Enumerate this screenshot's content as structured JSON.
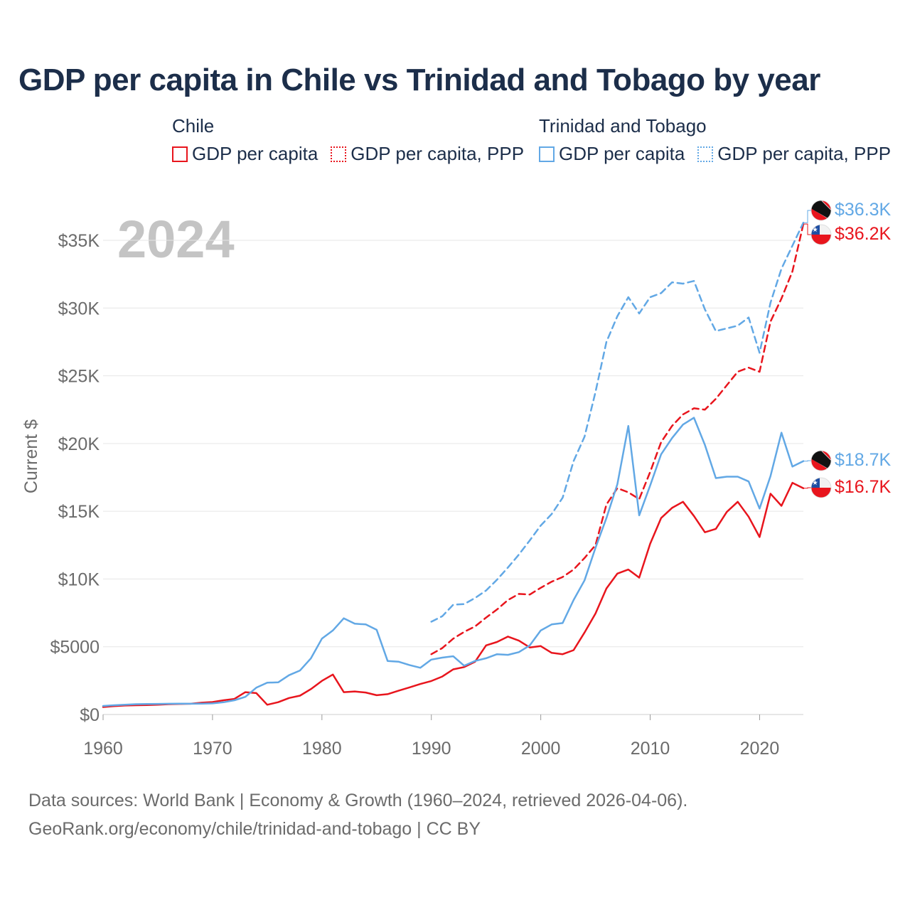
{
  "title": "GDP per capita in Chile vs Trinidad and Tobago by year",
  "year_watermark": "2024",
  "legend": {
    "chile": {
      "country": "Chile",
      "gdp_label": "GDP per capita",
      "ppp_label": "GDP per capita, PPP"
    },
    "tt": {
      "country": "Trinidad and Tobago",
      "gdp_label": "GDP per capita",
      "ppp_label": "GDP per capita, PPP"
    }
  },
  "colors": {
    "chile": "#e8151d",
    "tt": "#62a8e5",
    "grid": "#e6e6e6",
    "axis_text": "#6b6b6b",
    "title": "#1c2e4a"
  },
  "end_labels": {
    "tt_ppp": "$36.3K",
    "chile_ppp": "$36.2K",
    "tt_gdp": "$18.7K",
    "chile_gdp": "$16.7K"
  },
  "sources": {
    "line1": "Data sources: World Bank | Economy & Growth (1960–2024, retrieved 2026-04-06).",
    "line2": "GeoRank.org/economy/chile/trinidad-and-tobago | CC BY"
  },
  "chart_data": {
    "type": "line",
    "title": "GDP per capita in Chile vs Trinidad and Tobago by year",
    "xlabel": "",
    "ylabel": "Current $",
    "xlim": [
      1960,
      2024
    ],
    "ylim": [
      0,
      37500
    ],
    "xticks": [
      1960,
      1970,
      1980,
      1990,
      2000,
      2010,
      2020
    ],
    "xtick_labels": [
      "1960",
      "1970",
      "1980",
      "1990",
      "2000",
      "2010",
      "2020"
    ],
    "yticks": [
      0,
      5000,
      10000,
      15000,
      20000,
      25000,
      30000,
      35000
    ],
    "ytick_labels": [
      "$0",
      "$5000",
      "$10K",
      "$15K",
      "$20K",
      "$25K",
      "$30K",
      "$35K"
    ],
    "grid": true,
    "series": [
      {
        "name": "Chile GDP per capita",
        "country": "chile",
        "style": "solid",
        "x": [
          1960,
          1961,
          1962,
          1963,
          1964,
          1965,
          1966,
          1967,
          1968,
          1969,
          1970,
          1971,
          1972,
          1973,
          1974,
          1975,
          1976,
          1977,
          1978,
          1979,
          1980,
          1981,
          1982,
          1983,
          1984,
          1985,
          1986,
          1987,
          1988,
          1989,
          1990,
          1991,
          1992,
          1993,
          1994,
          1995,
          1996,
          1997,
          1998,
          1999,
          2000,
          2001,
          2002,
          2003,
          2004,
          2005,
          2006,
          2007,
          2008,
          2009,
          2010,
          2011,
          2012,
          2013,
          2014,
          2015,
          2016,
          2017,
          2018,
          2019,
          2020,
          2021,
          2022,
          2023,
          2024
        ],
        "y": [
          550,
          620,
          660,
          680,
          700,
          720,
          760,
          780,
          790,
          870,
          920,
          1050,
          1150,
          1650,
          1580,
          720,
          910,
          1220,
          1390,
          1880,
          2480,
          2950,
          1650,
          1700,
          1620,
          1420,
          1500,
          1750,
          2000,
          2250,
          2470,
          2800,
          3330,
          3500,
          3900,
          5100,
          5350,
          5750,
          5450,
          4950,
          5050,
          4550,
          4450,
          4750,
          6050,
          7450,
          9300,
          10400,
          10700,
          10100,
          12600,
          14500,
          15250,
          15700,
          14650,
          13450,
          13700,
          14950,
          15700,
          14600,
          13100,
          16300,
          15400,
          17100,
          16700
        ]
      },
      {
        "name": "Chile GDP per capita, PPP",
        "country": "chile",
        "style": "dashed",
        "x": [
          1990,
          1991,
          1992,
          1993,
          1994,
          1995,
          1996,
          1997,
          1998,
          1999,
          2000,
          2001,
          2002,
          2003,
          2004,
          2005,
          2006,
          2007,
          2008,
          2009,
          2010,
          2011,
          2012,
          2013,
          2014,
          2015,
          2016,
          2017,
          2018,
          2019,
          2020,
          2021,
          2022,
          2023,
          2024
        ],
        "y": [
          4450,
          4900,
          5600,
          6100,
          6500,
          7150,
          7750,
          8450,
          8900,
          8850,
          9350,
          9800,
          10150,
          10700,
          11550,
          12500,
          15500,
          16700,
          16400,
          15900,
          17900,
          20100,
          21300,
          22150,
          22600,
          22500,
          23300,
          24300,
          25300,
          25600,
          25300,
          29000,
          30700,
          32700,
          36200
        ]
      },
      {
        "name": "Trinidad and Tobago GDP per capita",
        "country": "tt",
        "style": "solid",
        "x": [
          1960,
          1961,
          1962,
          1963,
          1964,
          1965,
          1966,
          1967,
          1968,
          1969,
          1970,
          1971,
          1972,
          1973,
          1974,
          1975,
          1976,
          1977,
          1978,
          1979,
          1980,
          1981,
          1982,
          1983,
          1984,
          1985,
          1986,
          1987,
          1988,
          1989,
          1990,
          1991,
          1992,
          1993,
          1994,
          1995,
          1996,
          1997,
          1998,
          1999,
          2000,
          2001,
          2002,
          2003,
          2004,
          2005,
          2006,
          2007,
          2008,
          2009,
          2010,
          2011,
          2012,
          2013,
          2014,
          2015,
          2016,
          2017,
          2018,
          2019,
          2020,
          2021,
          2022,
          2023,
          2024
        ],
        "y": [
          630,
          680,
          720,
          760,
          770,
          780,
          790,
          800,
          790,
          800,
          820,
          900,
          1050,
          1300,
          1980,
          2350,
          2370,
          2900,
          3250,
          4150,
          5600,
          6200,
          7100,
          6700,
          6650,
          6250,
          3950,
          3900,
          3650,
          3450,
          4050,
          4200,
          4300,
          3600,
          3950,
          4150,
          4450,
          4400,
          4600,
          5100,
          6200,
          6650,
          6750,
          8450,
          9900,
          12300,
          14500,
          17000,
          21300,
          14700,
          16900,
          19200,
          20400,
          21400,
          21900,
          19900,
          17450,
          17550,
          17550,
          17200,
          15200,
          17600,
          20800,
          18300,
          18700
        ]
      },
      {
        "name": "Trinidad and Tobago GDP per capita, PPP",
        "country": "tt",
        "style": "dashed",
        "x": [
          1990,
          1991,
          1992,
          1993,
          1994,
          1995,
          1996,
          1997,
          1998,
          1999,
          2000,
          2001,
          2002,
          2003,
          2004,
          2005,
          2006,
          2007,
          2008,
          2009,
          2010,
          2011,
          2012,
          2013,
          2014,
          2015,
          2016,
          2017,
          2018,
          2019,
          2020,
          2021,
          2022,
          2023,
          2024
        ],
        "y": [
          6850,
          7250,
          8100,
          8150,
          8600,
          9150,
          9950,
          10850,
          11800,
          12850,
          13950,
          14800,
          16000,
          18700,
          20500,
          23800,
          27500,
          29400,
          30800,
          29600,
          30800,
          31100,
          31900,
          31800,
          32000,
          29900,
          28300,
          28500,
          28700,
          29300,
          26700,
          30400,
          32900,
          34600,
          36300
        ]
      }
    ]
  }
}
